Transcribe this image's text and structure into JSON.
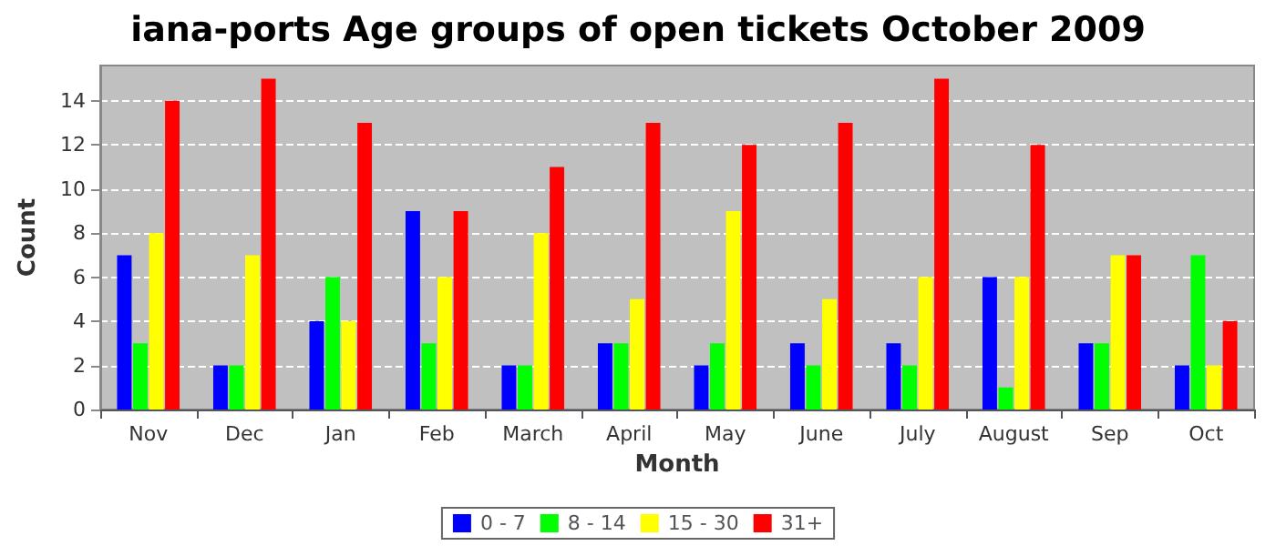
{
  "chart_data": {
    "type": "bar",
    "title": "iana-ports Age groups of open tickets October 2009",
    "xlabel": "Month",
    "ylabel": "Count",
    "categories": [
      "Nov",
      "Dec",
      "Jan",
      "Feb",
      "March",
      "April",
      "May",
      "June",
      "July",
      "August",
      "Sep",
      "Oct"
    ],
    "series": [
      {
        "name": "0 - 7",
        "color": "#0000ff",
        "values": [
          7,
          2,
          4,
          9,
          2,
          3,
          2,
          3,
          3,
          6,
          3,
          2
        ]
      },
      {
        "name": "8 - 14",
        "color": "#00ff00",
        "values": [
          3,
          2,
          6,
          3,
          2,
          3,
          3,
          2,
          2,
          1,
          3,
          7
        ]
      },
      {
        "name": "15 - 30",
        "color": "#ffff00",
        "values": [
          8,
          7,
          4,
          6,
          8,
          5,
          9,
          5,
          6,
          6,
          7,
          2
        ]
      },
      {
        "name": "31+",
        "color": "#ff0000",
        "values": [
          14,
          15,
          13,
          9,
          11,
          13,
          12,
          13,
          15,
          12,
          7,
          4
        ]
      }
    ],
    "ylim": [
      0,
      15.6
    ],
    "yticks": [
      0,
      2,
      4,
      6,
      8,
      10,
      12,
      14
    ],
    "grid": "y",
    "legend": "bottom"
  }
}
